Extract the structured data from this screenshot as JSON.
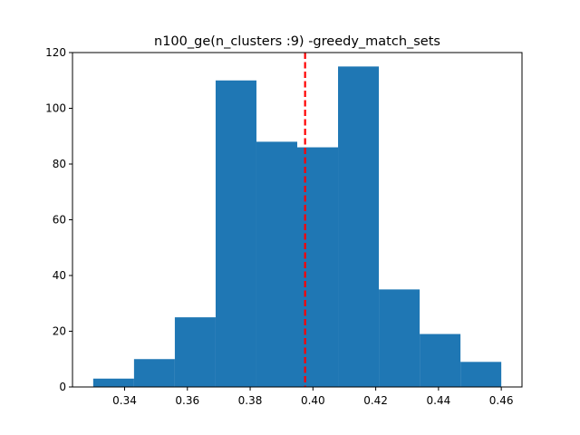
{
  "chart_data": {
    "type": "histogram",
    "title": "n100_ge(n_clusters :9) -greedy_match_sets",
    "xlabel": "",
    "ylabel": "",
    "xlim": [
      0.3234,
      0.4666
    ],
    "ylim": [
      0,
      120
    ],
    "bin_edges": [
      0.33,
      0.343,
      0.356,
      0.369,
      0.382,
      0.395,
      0.408,
      0.421,
      0.434,
      0.447,
      0.46
    ],
    "counts": [
      3,
      10,
      25,
      110,
      88,
      86,
      115,
      35,
      19,
      9
    ],
    "bar_color": "#1f77b4",
    "x_ticks": [
      0.34,
      0.36,
      0.38,
      0.4,
      0.42,
      0.44,
      0.46
    ],
    "x_tick_labels": [
      "0.34",
      "0.36",
      "0.38",
      "0.40",
      "0.42",
      "0.44",
      "0.46"
    ],
    "y_ticks": [
      0,
      20,
      40,
      60,
      80,
      100,
      120
    ],
    "y_tick_labels": [
      "0",
      "20",
      "40",
      "60",
      "80",
      "100",
      "120"
    ],
    "reference_line": {
      "x": 0.3975,
      "color": "#ff0000",
      "style": "dashed"
    }
  }
}
